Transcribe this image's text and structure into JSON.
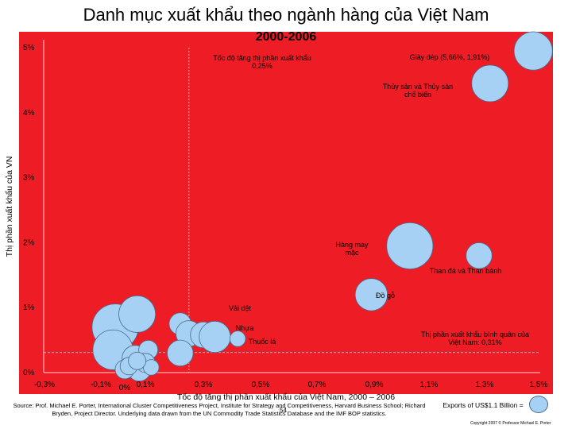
{
  "title": "Danh mục xuất khẩu theo ngành hàng của Việt Nam",
  "subtitle": "2000-2006",
  "source_text": "Source: Prof. Michael E. Porter, International Cluster Competitiveness Project, Institute for Strategy and Competitiveness, Harvard Business School; Richard Bryden, Project Director. Underlying data drawn from the UN Commodity Trade Statistics Database and the IMF BOP statistics.",
  "page_number": "54",
  "legend_text": "Exports of US$1.1 Billion =",
  "copyright": "Copyright 2007 © Professor Michael E. Porter",
  "colors": {
    "plot_background": "#ee1c25",
    "bubble_fill": "#a6d0f4",
    "bubble_stroke": "#4a6a8a",
    "grid": "#ffffff",
    "reference_line": "#9aa4b6"
  },
  "chart_data": {
    "type": "scatter",
    "title": "Danh mục xuất khẩu theo ngành hàng của Việt Nam",
    "subtitle": "2000-2006",
    "xlabel": "Tốc độ tăng thị phần xuất khẩu của Việt Nam, 2000 – 2006",
    "ylabel": "Thị phần xuất khẩu của VN",
    "xlim": [
      -0.3,
      1.5
    ],
    "ylim": [
      0,
      5
    ],
    "x_ticks": [
      {
        "value": -0.3,
        "label": "-0,3%"
      },
      {
        "value": -0.1,
        "label": "-0,1%"
      },
      {
        "value": 0.0,
        "label": "0%"
      },
      {
        "value": 0.1,
        "label": "0,1%"
      },
      {
        "value": 0.3,
        "label": "0,3%"
      },
      {
        "value": 0.5,
        "label": "0,5%"
      },
      {
        "value": 0.7,
        "label": "0,7%"
      },
      {
        "value": 0.9,
        "label": "0,9%"
      },
      {
        "value": 1.1,
        "label": "1,1%"
      },
      {
        "value": 1.3,
        "label": "1,3%"
      },
      {
        "value": 1.5,
        "label": "1,5%"
      }
    ],
    "y_ticks": [
      {
        "value": 0,
        "label": "0%"
      },
      {
        "value": 1,
        "label": "1%"
      },
      {
        "value": 2,
        "label": "2%"
      },
      {
        "value": 3,
        "label": "3%"
      },
      {
        "value": 4,
        "label": "4%"
      },
      {
        "value": 5,
        "label": "5%"
      }
    ],
    "grid": false,
    "reference_lines": {
      "vertical": {
        "value": 0.25,
        "label": "Tốc độ tăng thị phần xuất khẩu 0,25%"
      },
      "horizontal": {
        "value": 0.31,
        "label": "Thị phần xuất khẩu bình quân của Việt Nam: 0,31%"
      }
    },
    "points": [
      {
        "x": 1.48,
        "y": 4.95,
        "size": 1.2,
        "label": "Giày dép (5,66%, 1,91%)"
      },
      {
        "x": 1.32,
        "y": 4.45,
        "size": 1.1,
        "label": "Thủy sản và Thủy sản chế biến"
      },
      {
        "x": 1.03,
        "y": 1.95,
        "size": 1.75,
        "label": "Hàng may mặc"
      },
      {
        "x": 1.28,
        "y": 1.8,
        "size": 0.55,
        "label": "Than đá và Than bánh"
      },
      {
        "x": 0.89,
        "y": 1.2,
        "size": 0.85,
        "label": "Đồ gỗ"
      },
      {
        "x": 0.22,
        "y": 0.75,
        "size": 0.4,
        "label": ""
      },
      {
        "x": -0.04,
        "y": 0.7,
        "size": 1.75,
        "label": ""
      },
      {
        "x": 0.06,
        "y": 0.9,
        "size": 1.1,
        "label": "Vải dệt"
      },
      {
        "x": 0.25,
        "y": 0.6,
        "size": 0.55,
        "label": ""
      },
      {
        "x": 0.3,
        "y": 0.58,
        "size": 0.55,
        "label": ""
      },
      {
        "x": 0.34,
        "y": 0.55,
        "size": 0.8,
        "label": "Nhựa"
      },
      {
        "x": 0.42,
        "y": 0.52,
        "size": 0.2,
        "label": "Thuốc lá"
      },
      {
        "x": -0.05,
        "y": 0.35,
        "size": 1.3,
        "label": ""
      },
      {
        "x": 0.22,
        "y": 0.3,
        "size": 0.55,
        "label": ""
      },
      {
        "x": 0.05,
        "y": 0.22,
        "size": 0.55,
        "label": ""
      },
      {
        "x": 0.11,
        "y": 0.35,
        "size": 0.3,
        "label": ""
      },
      {
        "x": 0.07,
        "y": 0.05,
        "size": 0.45,
        "label": ""
      },
      {
        "x": 0.1,
        "y": 0.15,
        "size": 0.3,
        "label": ""
      },
      {
        "x": 0.0,
        "y": 0.05,
        "size": 0.3,
        "label": ""
      },
      {
        "x": 0.02,
        "y": 0.1,
        "size": 0.25,
        "label": ""
      },
      {
        "x": 0.12,
        "y": 0.08,
        "size": 0.2,
        "label": ""
      },
      {
        "x": 0.06,
        "y": 0.18,
        "size": 0.25,
        "label": ""
      }
    ]
  }
}
